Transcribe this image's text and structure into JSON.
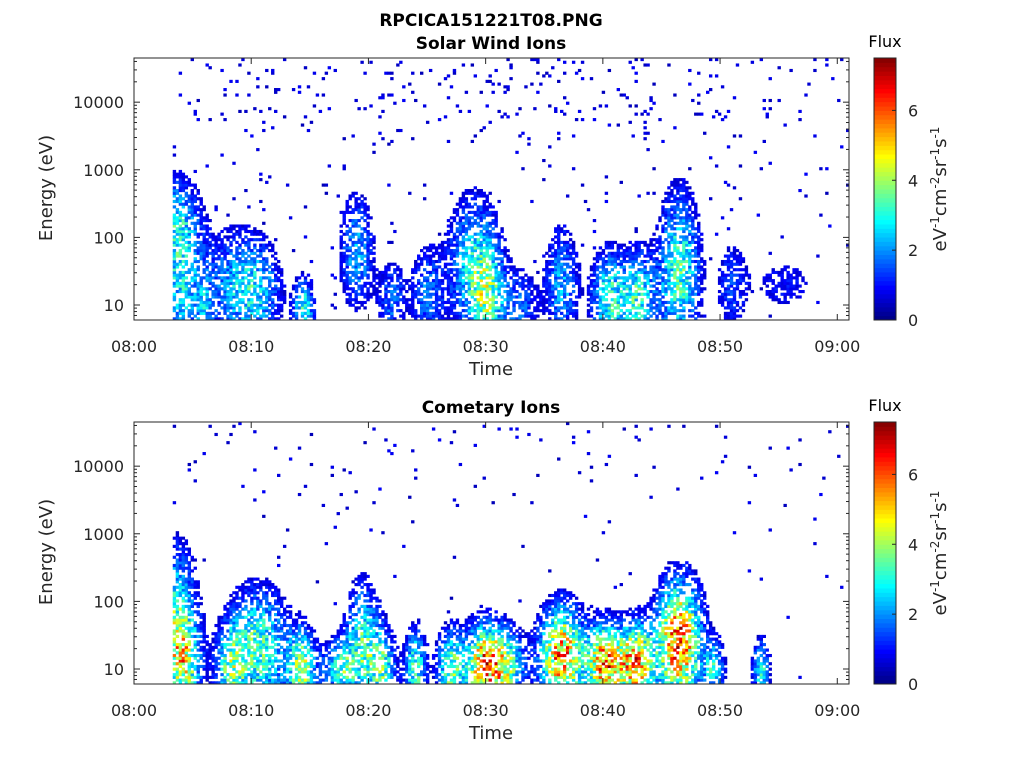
{
  "figure_title": "RPCICA151221T08.PNG",
  "colors": {
    "axis": "#262626",
    "background": "#ffffff",
    "colormap": "jet"
  },
  "chart_data": [
    {
      "type": "heatmap",
      "title": "Solar Wind Ions",
      "xlabel": "Time",
      "ylabel": "Energy (eV)",
      "x_ticks": [
        "08:00",
        "08:10",
        "08:20",
        "08:30",
        "08:40",
        "08:50",
        "09:00"
      ],
      "x_range_minutes": [
        0,
        61
      ],
      "y_ticks": [
        "10",
        "100",
        "1000",
        "10000"
      ],
      "y_scale": "log",
      "y_range": [
        6,
        45000
      ],
      "colorbar": {
        "title": "Flux",
        "label": "eV-1cm-2sr-1s-1",
        "ticks": [
          "0",
          "2",
          "4",
          "6"
        ],
        "range": [
          0,
          7.5
        ]
      },
      "noise_level": 0.22,
      "events": [
        {
          "t": 3.5,
          "e": 150,
          "flux": 3.0,
          "spread": 0.5,
          "dur": 1.5
        },
        {
          "t": 4.0,
          "e": 12,
          "flux": 2.5,
          "spread": 0.6,
          "dur": 1.2
        },
        {
          "t": 6.0,
          "e": 10,
          "flux": 1.5,
          "spread": 0.3,
          "dur": 0.5
        },
        {
          "t": 8.5,
          "e": 20,
          "flux": 2.0,
          "spread": 0.6,
          "dur": 2.0
        },
        {
          "t": 10.5,
          "e": 15,
          "flux": 2.0,
          "spread": 0.5,
          "dur": 1.5
        },
        {
          "t": 14.5,
          "e": 9,
          "flux": 3.5,
          "spread": 0.3,
          "dur": 0.6
        },
        {
          "t": 19.0,
          "e": 60,
          "flux": 2.5,
          "spread": 0.6,
          "dur": 1.0
        },
        {
          "t": 22.0,
          "e": 12,
          "flux": 2.0,
          "spread": 0.4,
          "dur": 0.8
        },
        {
          "t": 25.0,
          "e": 15,
          "flux": 2.0,
          "spread": 0.5,
          "dur": 1.0
        },
        {
          "t": 29.0,
          "e": 40,
          "flux": 3.0,
          "spread": 0.7,
          "dur": 1.5
        },
        {
          "t": 30.2,
          "e": 12,
          "flux": 3.0,
          "spread": 0.5,
          "dur": 1.0
        },
        {
          "t": 33.0,
          "e": 10,
          "flux": 1.8,
          "spread": 0.4,
          "dur": 1.0
        },
        {
          "t": 36.5,
          "e": 20,
          "flux": 2.5,
          "spread": 0.6,
          "dur": 1.0
        },
        {
          "t": 40.5,
          "e": 12,
          "flux": 3.5,
          "spread": 0.5,
          "dur": 1.0
        },
        {
          "t": 43.0,
          "e": 12,
          "flux": 3.5,
          "spread": 0.5,
          "dur": 1.0
        },
        {
          "t": 46.5,
          "e": 30,
          "flux": 3.8,
          "spread": 0.8,
          "dur": 1.2
        },
        {
          "t": 51.0,
          "e": 20,
          "flux": 1.5,
          "spread": 0.5,
          "dur": 1.0
        },
        {
          "t": 55.5,
          "e": 20,
          "flux": 1.2,
          "spread": 0.3,
          "dur": 2.0
        }
      ]
    },
    {
      "type": "heatmap",
      "title": "Cometary Ions",
      "xlabel": "Time",
      "ylabel": "Energy (eV)",
      "x_ticks": [
        "08:00",
        "08:10",
        "08:20",
        "08:30",
        "08:40",
        "08:50",
        "09:00"
      ],
      "x_range_minutes": [
        0,
        61
      ],
      "y_ticks": [
        "10",
        "100",
        "1000",
        "10000"
      ],
      "y_scale": "log",
      "y_range": [
        6,
        45000
      ],
      "colorbar": {
        "title": "Flux",
        "label": "eV-1cm-2sr-1s-1",
        "ticks": [
          "0",
          "2",
          "4",
          "6"
        ],
        "range": [
          0,
          7.5
        ]
      },
      "noise_level": 0.08,
      "events": [
        {
          "t": 3.5,
          "e": 80,
          "flux": 3.0,
          "spread": 0.7,
          "dur": 1.2
        },
        {
          "t": 4.2,
          "e": 12,
          "flux": 4.5,
          "spread": 0.5,
          "dur": 1.0
        },
        {
          "t": 8.2,
          "e": 10,
          "flux": 3.0,
          "spread": 0.4,
          "dur": 0.8
        },
        {
          "t": 10.5,
          "e": 20,
          "flux": 4.0,
          "spread": 0.6,
          "dur": 1.8
        },
        {
          "t": 14.3,
          "e": 10,
          "flux": 4.5,
          "spread": 0.4,
          "dur": 0.8
        },
        {
          "t": 17.5,
          "e": 10,
          "flux": 3.5,
          "spread": 0.3,
          "dur": 1.0
        },
        {
          "t": 19.5,
          "e": 25,
          "flux": 3.5,
          "spread": 0.6,
          "dur": 1.0
        },
        {
          "t": 21.2,
          "e": 10,
          "flux": 3.5,
          "spread": 0.4,
          "dur": 0.8
        },
        {
          "t": 24.0,
          "e": 10,
          "flux": 4.0,
          "spread": 0.4,
          "dur": 0.6
        },
        {
          "t": 27.0,
          "e": 10,
          "flux": 4.0,
          "spread": 0.4,
          "dur": 0.8
        },
        {
          "t": 30.0,
          "e": 12,
          "flux": 6.5,
          "spread": 0.4,
          "dur": 1.2
        },
        {
          "t": 32.0,
          "e": 10,
          "flux": 3.0,
          "spread": 0.4,
          "dur": 1.0
        },
        {
          "t": 36.5,
          "e": 15,
          "flux": 6.5,
          "spread": 0.5,
          "dur": 1.3
        },
        {
          "t": 40.2,
          "e": 12,
          "flux": 6.5,
          "spread": 0.4,
          "dur": 1.0
        },
        {
          "t": 42.8,
          "e": 12,
          "flux": 6.5,
          "spread": 0.4,
          "dur": 1.0
        },
        {
          "t": 46.5,
          "e": 25,
          "flux": 7.0,
          "spread": 0.6,
          "dur": 1.3
        },
        {
          "t": 49.5,
          "e": 10,
          "flux": 3.0,
          "spread": 0.3,
          "dur": 0.6
        },
        {
          "t": 53.5,
          "e": 10,
          "flux": 3.5,
          "spread": 0.3,
          "dur": 0.5
        }
      ]
    }
  ]
}
